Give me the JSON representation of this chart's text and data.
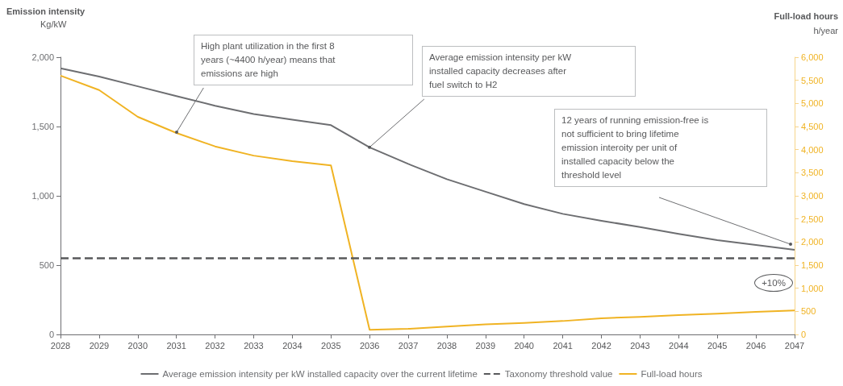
{
  "chart_data": {
    "type": "line",
    "ylabel": "Emission intensity\nKg/kW",
    "y2label": "Full-load hours\nh/year",
    "categories": [
      "2028",
      "2029",
      "2030",
      "2031",
      "2032",
      "2033",
      "2034",
      "2035",
      "2036",
      "2037",
      "2038",
      "2039",
      "2040",
      "2041",
      "2042",
      "2043",
      "2044",
      "2045",
      "2046",
      "2047"
    ],
    "series": [
      {
        "name": "Average emission intensity per kW installed capacity over the current lifetime",
        "color": "#6d6e71",
        "values": [
          1920,
          1860,
          1790,
          1720,
          1650,
          1590,
          1550,
          1510,
          1350,
          1230,
          1120,
          1030,
          940,
          870,
          820,
          775,
          725,
          680,
          645,
          610
        ]
      },
      {
        "name": "Full-load hours",
        "color": "#f0b323",
        "axis": "y2",
        "values": [
          5600,
          5290,
          4710,
          4360,
          4070,
          3870,
          3750,
          3660,
          100,
          120,
          170,
          220,
          250,
          290,
          350,
          380,
          420,
          450,
          490,
          520
        ]
      }
    ],
    "ref_lines": [
      {
        "axis": "y",
        "value": 550,
        "label": "Taxonomy threshold value",
        "color": "#58595b",
        "line_style": "dashed"
      }
    ],
    "ylim": [
      0,
      2000
    ],
    "yticks": [
      0,
      {
        "value": 500,
        "label": "500"
      },
      {
        "value": 1000,
        "label": "1,000"
      },
      {
        "value": 1500,
        "label": "1,500"
      },
      {
        "value": 2000,
        "label": "2,000"
      }
    ],
    "y2lim": [
      0,
      6000
    ],
    "y2ticks": [
      0,
      500,
      {
        "value": 1000,
        "label": "1,000"
      },
      {
        "value": 1500,
        "label": "1,500"
      },
      {
        "value": 2000,
        "label": "2,000"
      },
      {
        "value": 2500,
        "label": "2,500"
      },
      {
        "value": 3000,
        "label": "3,000"
      },
      {
        "value": 3500,
        "label": "3,500"
      },
      {
        "value": 4000,
        "label": "4,000"
      },
      {
        "value": 4500,
        "label": "4,500"
      },
      {
        "value": 5000,
        "label": "5,000"
      },
      {
        "value": 5500,
        "label": "5,500"
      },
      {
        "value": 6000,
        "label": "6,000"
      }
    ],
    "annotations": [
      {
        "text": "High plant utilization in the first 8\nyears (~4400 h/year) means that\nemissions are high",
        "x": "2031",
        "y": 1460
      },
      {
        "text": "Average emission intensity per kW\ninstalled capacity decreases after\nfuel switch to H2",
        "x": "2036",
        "y": 1350
      },
      "12 years of running emission-free is\nnot sufficient to bring lifetime\nemission interoity per unit of\ninstalled capacity below the\nthreshold level",
      "+10%"
    ],
    "grid": false,
    "legend": "bottom",
    "marker": "none",
    "line_style": "solid"
  }
}
